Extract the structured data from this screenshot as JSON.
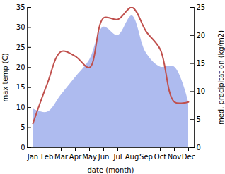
{
  "chart_data": {
    "type": "line",
    "x_label": "date (month)",
    "categories": [
      "Jan",
      "Feb",
      "Mar",
      "Apr",
      "May",
      "Jun",
      "Jul",
      "Aug",
      "Sep",
      "Oct",
      "Nov",
      "Dec"
    ],
    "series": [
      {
        "name": "med. precipitation (kg/m2)",
        "type": "area",
        "axis": "y2",
        "color": "#aebbef",
        "values": [
          6.9,
          6.3,
          9.4,
          12.5,
          15.6,
          21.5,
          20,
          23.5,
          16.9,
          14.4,
          14.4,
          8.1
        ]
      },
      {
        "name": "max temp (C)",
        "type": "line",
        "color": "#c0504d",
        "values": [
          6,
          15.8,
          24,
          22.8,
          20,
          32.4,
          32,
          35,
          29,
          24.5,
          11.4,
          11.4
        ]
      }
    ],
    "ylim": [
      0,
      35
    ],
    "yticks": [
      0,
      5,
      10,
      15,
      20,
      25,
      30,
      35
    ],
    "y2lim": [
      0,
      25
    ],
    "y2ticks": [
      0,
      5,
      10,
      15,
      20,
      25
    ]
  }
}
